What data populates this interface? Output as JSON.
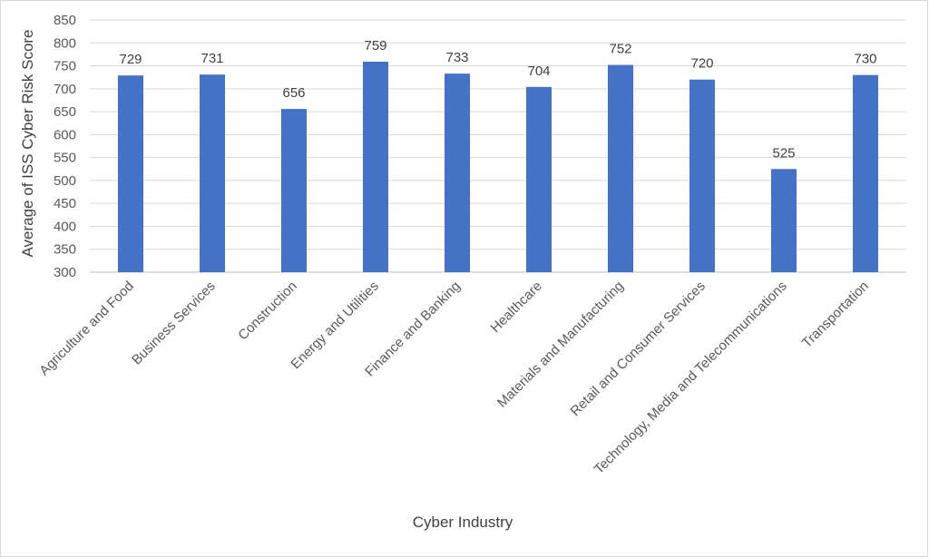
{
  "chart_data": {
    "type": "bar",
    "title": "",
    "xlabel": "Cyber Industry",
    "ylabel": "Average of ISS Cyber Risk Score",
    "ylim": [
      300,
      850
    ],
    "yticks": [
      300,
      350,
      400,
      450,
      500,
      550,
      600,
      650,
      700,
      750,
      800,
      850
    ],
    "grid": true,
    "legend": "none",
    "bar_color": "#4472C4",
    "categories": [
      "Agriculture and Food",
      "Business Services",
      "Construction",
      "Energy and Utilities",
      "Finance and Banking",
      "Healthcare",
      "Materials and Manufacturing",
      "Retail and Consumer Services",
      "Technology, Media and Telecommunications",
      "Transportation"
    ],
    "values": [
      729,
      731,
      656,
      759,
      733,
      704,
      752,
      720,
      525,
      730
    ]
  }
}
